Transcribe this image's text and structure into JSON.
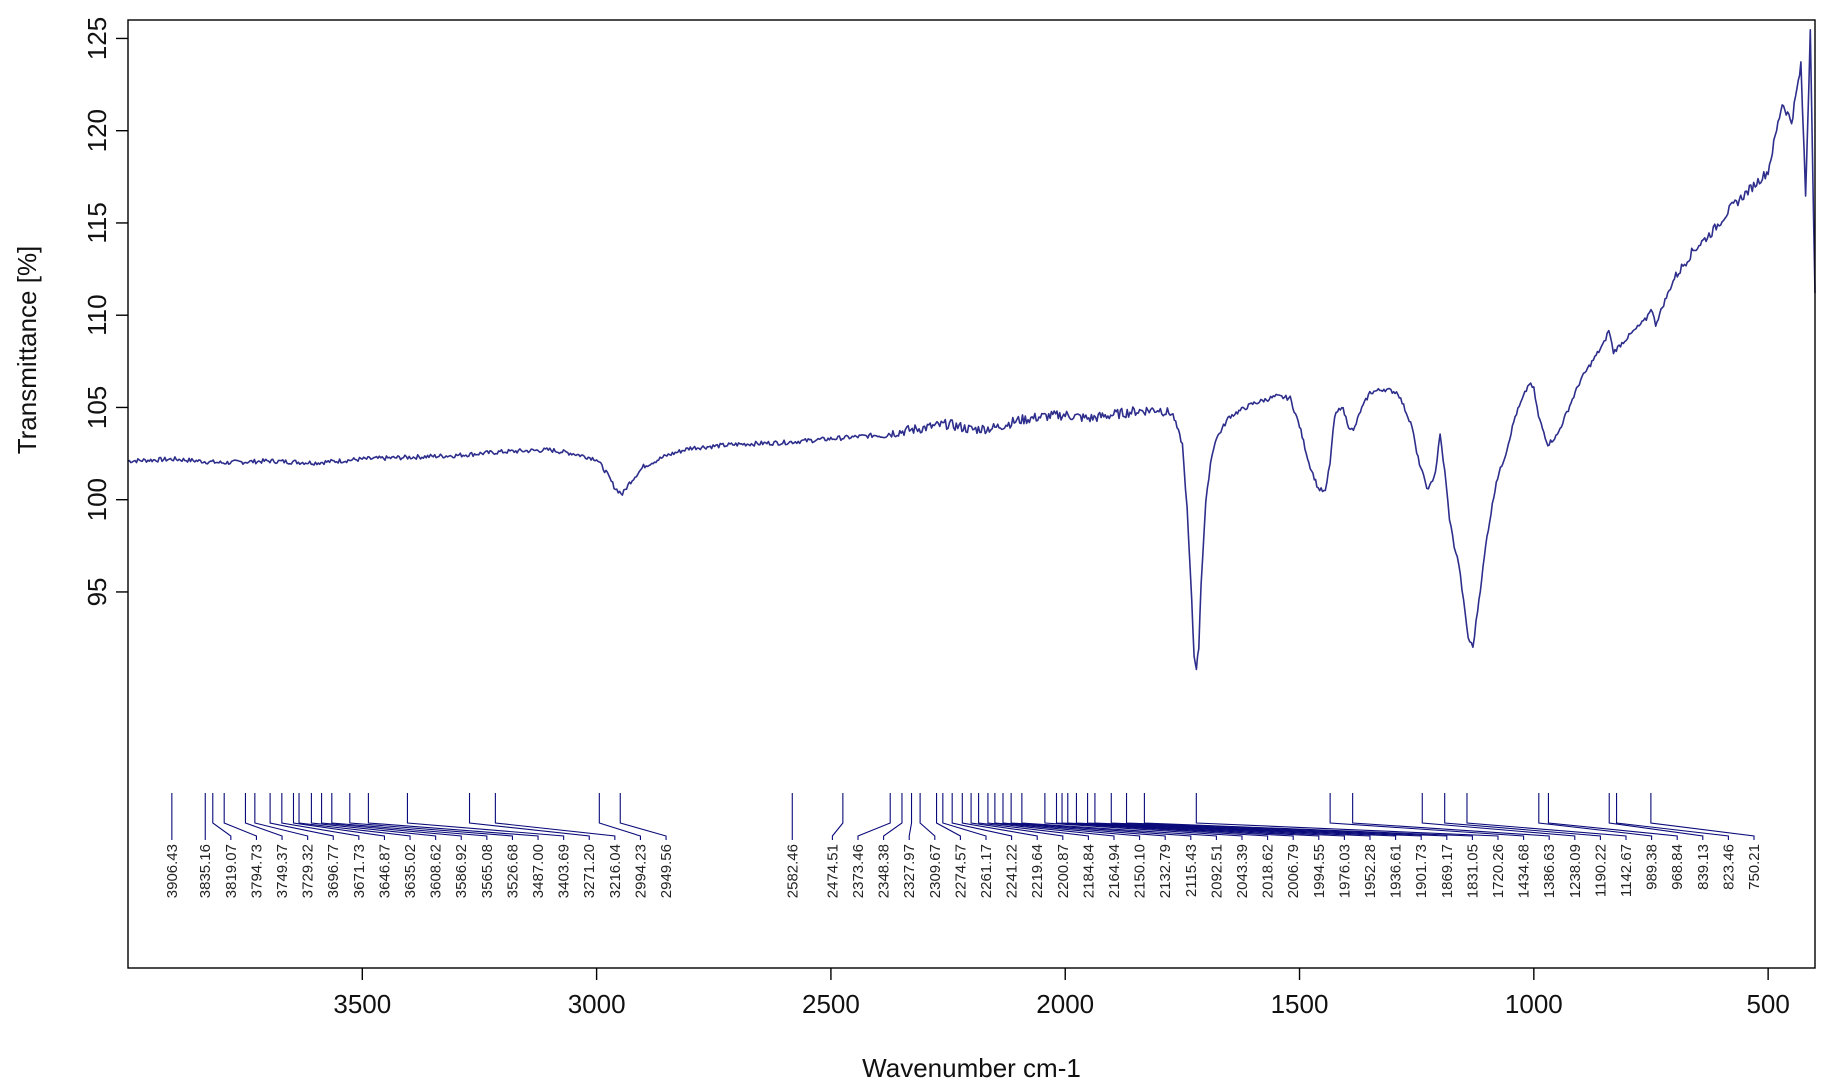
{
  "chart_data": {
    "type": "line",
    "title": "",
    "xlabel": "Wavenumber cm-1",
    "ylabel": "Transmittance [%]",
    "xlim": [
      4000,
      400
    ],
    "ylim": [
      86,
      126
    ],
    "x_reversed": true,
    "grid": false,
    "line_color": "#2e2e8c",
    "peak_color": "#0a0a7a",
    "x_ticks": [
      {
        "value": 3500,
        "label": "3500"
      },
      {
        "value": 3000,
        "label": "3000"
      },
      {
        "value": 2500,
        "label": "2500"
      },
      {
        "value": 2000,
        "label": "2000"
      },
      {
        "value": 1500,
        "label": "1500"
      },
      {
        "value": 1000,
        "label": "1000"
      },
      {
        "value": 500,
        "label": "500"
      }
    ],
    "y_ticks": [
      {
        "value": 95,
        "label": "95"
      },
      {
        "value": 100,
        "label": "100"
      },
      {
        "value": 105,
        "label": "105"
      },
      {
        "value": 110,
        "label": "110"
      },
      {
        "value": 115,
        "label": "115"
      },
      {
        "value": 120,
        "label": "120"
      },
      {
        "value": 125,
        "label": "125"
      }
    ],
    "spectrum": {
      "x": [
        4000,
        3900,
        3800,
        3700,
        3600,
        3500,
        3400,
        3300,
        3200,
        3100,
        3050,
        3000,
        2980,
        2960,
        2945,
        2930,
        2900,
        2850,
        2800,
        2700,
        2600,
        2500,
        2400,
        2350,
        2300,
        2250,
        2200,
        2150,
        2100,
        2050,
        2000,
        1950,
        1900,
        1850,
        1800,
        1770,
        1750,
        1740,
        1730,
        1725,
        1720,
        1715,
        1710,
        1700,
        1690,
        1680,
        1650,
        1600,
        1550,
        1520,
        1500,
        1480,
        1460,
        1445,
        1435,
        1425,
        1410,
        1395,
        1385,
        1370,
        1350,
        1320,
        1290,
        1260,
        1250,
        1235,
        1225,
        1210,
        1200,
        1190,
        1180,
        1170,
        1160,
        1150,
        1140,
        1130,
        1120,
        1100,
        1080,
        1060,
        1040,
        1010,
        1000,
        990,
        970,
        950,
        900,
        870,
        850,
        840,
        830,
        800,
        760,
        750,
        740,
        720,
        700,
        660,
        620,
        580,
        540,
        500,
        470,
        450,
        430,
        420,
        410,
        400
      ],
      "y": [
        102.1,
        102.2,
        102.0,
        102.1,
        102.0,
        102.2,
        102.3,
        102.4,
        102.6,
        102.7,
        102.5,
        102.2,
        101.5,
        100.6,
        100.3,
        100.9,
        101.8,
        102.4,
        102.8,
        103.0,
        103.1,
        103.3,
        103.5,
        103.7,
        103.9,
        104.1,
        103.8,
        103.9,
        104.3,
        104.5,
        104.6,
        104.4,
        104.6,
        104.8,
        104.9,
        104.6,
        103.0,
        99.5,
        94.5,
        91.5,
        90.9,
        92.0,
        95.5,
        99.8,
        102.0,
        103.2,
        104.5,
        105.2,
        105.6,
        105.5,
        104.0,
        102.0,
        100.6,
        100.4,
        102.0,
        104.5,
        105.1,
        104.0,
        103.7,
        104.8,
        105.8,
        106.0,
        105.8,
        104.0,
        102.5,
        101.2,
        100.5,
        101.5,
        103.5,
        101.5,
        99.0,
        97.5,
        96.5,
        94.5,
        92.5,
        92.0,
        94.0,
        98.0,
        101.0,
        102.5,
        104.5,
        106.3,
        106.0,
        104.5,
        103.0,
        103.5,
        106.5,
        107.7,
        108.5,
        109.2,
        108.0,
        108.8,
        109.8,
        110.4,
        109.5,
        110.8,
        112.0,
        113.5,
        114.5,
        115.8,
        116.8,
        117.8,
        121.5,
        120.5,
        123.5,
        116.5,
        125.5,
        111.2
      ]
    },
    "peak_markers": [
      {
        "x": 3906.43,
        "label": "3906.43"
      },
      {
        "x": 3835.16,
        "label": "3835.16"
      },
      {
        "x": 3819.07,
        "label": "3819.07"
      },
      {
        "x": 3794.73,
        "label": "3794.73"
      },
      {
        "x": 3749.37,
        "label": "3749.37"
      },
      {
        "x": 3729.32,
        "label": "3729.32"
      },
      {
        "x": 3696.77,
        "label": "3696.77"
      },
      {
        "x": 3671.73,
        "label": "3671.73"
      },
      {
        "x": 3646.87,
        "label": "3646.87"
      },
      {
        "x": 3635.02,
        "label": "3635.02"
      },
      {
        "x": 3608.62,
        "label": "3608.62"
      },
      {
        "x": 3586.92,
        "label": "3586.92"
      },
      {
        "x": 3565.08,
        "label": "3565.08"
      },
      {
        "x": 3526.68,
        "label": "3526.68"
      },
      {
        "x": 3487.0,
        "label": "3487.00"
      },
      {
        "x": 3403.69,
        "label": "3403.69"
      },
      {
        "x": 3271.2,
        "label": "3271.20"
      },
      {
        "x": 3216.04,
        "label": "3216.04"
      },
      {
        "x": 2994.23,
        "label": "2994.23"
      },
      {
        "x": 2949.56,
        "label": "2949.56"
      },
      {
        "x": 2582.46,
        "label": "2582.46"
      },
      {
        "x": 2474.51,
        "label": "2474.51"
      },
      {
        "x": 2373.46,
        "label": "2373.46"
      },
      {
        "x": 2348.38,
        "label": "2348.38"
      },
      {
        "x": 2327.97,
        "label": "2327.97"
      },
      {
        "x": 2309.67,
        "label": "2309.67"
      },
      {
        "x": 2274.57,
        "label": "2274.57"
      },
      {
        "x": 2261.17,
        "label": "2261.17"
      },
      {
        "x": 2241.22,
        "label": "2241.22"
      },
      {
        "x": 2219.64,
        "label": "2219.64"
      },
      {
        "x": 2200.87,
        "label": "2200.87"
      },
      {
        "x": 2184.84,
        "label": "2184.84"
      },
      {
        "x": 2164.94,
        "label": "2164.94"
      },
      {
        "x": 2150.1,
        "label": "2150.10"
      },
      {
        "x": 2132.79,
        "label": "2132.79"
      },
      {
        "x": 2115.43,
        "label": "2115.43"
      },
      {
        "x": 2092.51,
        "label": "2092.51"
      },
      {
        "x": 2043.39,
        "label": "2043.39"
      },
      {
        "x": 2018.62,
        "label": "2018.62"
      },
      {
        "x": 2006.79,
        "label": "2006.79"
      },
      {
        "x": 1994.55,
        "label": "1994.55"
      },
      {
        "x": 1976.03,
        "label": "1976.03"
      },
      {
        "x": 1952.28,
        "label": "1952.28"
      },
      {
        "x": 1936.61,
        "label": "1936.61"
      },
      {
        "x": 1901.73,
        "label": "1901.73"
      },
      {
        "x": 1869.17,
        "label": "1869.17"
      },
      {
        "x": 1831.05,
        "label": "1831.05"
      },
      {
        "x": 1720.26,
        "label": "1720.26"
      },
      {
        "x": 1434.68,
        "label": "1434.68"
      },
      {
        "x": 1386.63,
        "label": "1386.63"
      },
      {
        "x": 1238.09,
        "label": "1238.09"
      },
      {
        "x": 1190.22,
        "label": "1190.22"
      },
      {
        "x": 1142.67,
        "label": "1142.67"
      },
      {
        "x": 989.38,
        "label": "989.38"
      },
      {
        "x": 968.84,
        "label": "968.84"
      },
      {
        "x": 839.13,
        "label": "839.13"
      },
      {
        "x": 823.46,
        "label": "823.46"
      },
      {
        "x": 750.21,
        "label": "750.21"
      }
    ]
  }
}
